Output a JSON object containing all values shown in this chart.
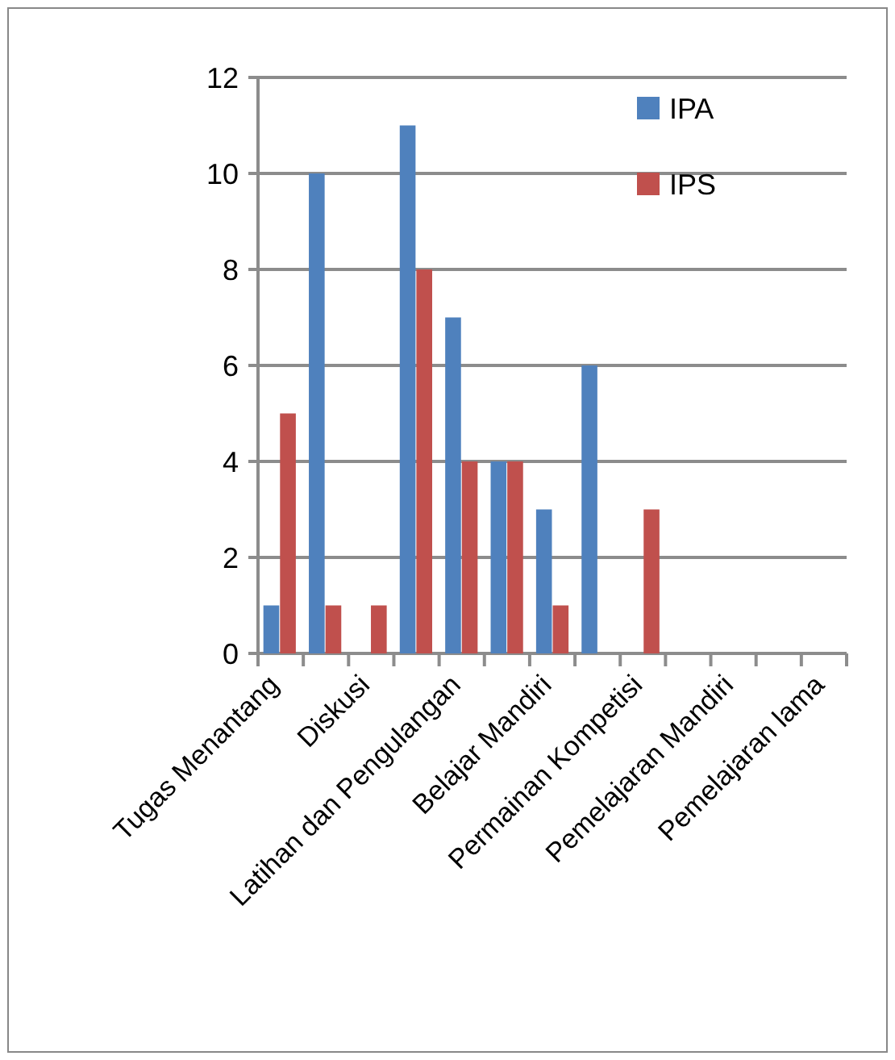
{
  "chart_data": {
    "type": "bar",
    "categories": [
      "Tugas Menantang",
      null,
      "Diskusi",
      null,
      "Latihan dan Pengulangan",
      null,
      "Belajar Mandiri",
      null,
      "Permainan Kompetisi",
      null,
      "Pemelajaran Mandiri",
      null,
      "Pemelajaran lama"
    ],
    "series": [
      {
        "name": "IPA",
        "color": "#4f81bd",
        "values": [
          1,
          10,
          0,
          11,
          7,
          4,
          3,
          6,
          0,
          0,
          0,
          0,
          0
        ]
      },
      {
        "name": "IPS",
        "color": "#c0504d",
        "values": [
          5,
          1,
          1,
          8,
          4,
          4,
          1,
          0,
          3,
          0,
          0,
          0,
          0
        ]
      }
    ],
    "ylim": [
      0,
      12
    ],
    "yticks": [
      0,
      2,
      4,
      6,
      8,
      10,
      12
    ],
    "grid": "y",
    "legend": "top right"
  }
}
